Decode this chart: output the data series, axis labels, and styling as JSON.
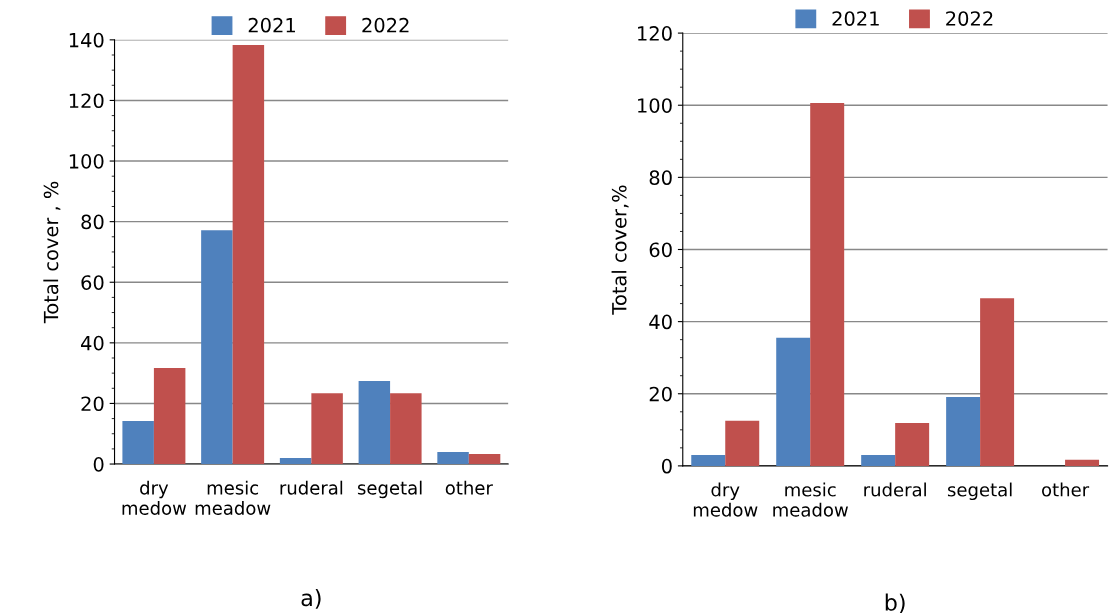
{
  "chart_data": [
    {
      "type": "bar",
      "categories": [
        "dry\nmedow",
        "mesic\nmeadow",
        "ruderal",
        "segetal",
        "other"
      ],
      "series": [
        {
          "name": "2021",
          "color": "#4f81bd",
          "values": [
            14.2,
            77.2,
            2,
            27.4,
            4
          ]
        },
        {
          "name": "2022",
          "color": "#c0504d",
          "values": [
            31.7,
            138.3,
            23.4,
            23.4,
            3.3
          ]
        }
      ],
      "ylabel": "Total cover , %",
      "ylim": [
        0,
        140
      ],
      "yticks": [
        0,
        20,
        40,
        60,
        80,
        100,
        120,
        140
      ],
      "grid": "y",
      "legend": "top",
      "annotations": [
        "a)"
      ]
    },
    {
      "type": "bar",
      "categories": [
        "dry\nmedow",
        "mesic\nmeadow",
        "ruderal",
        "segetal",
        "other"
      ],
      "series": [
        {
          "name": "2021",
          "color": "#4f81bd",
          "values": [
            3.0,
            35.5,
            3.0,
            19.1,
            0
          ]
        },
        {
          "name": "2022",
          "color": "#c0504d",
          "values": [
            12.5,
            100.6,
            11.9,
            46.5,
            1.7
          ]
        }
      ],
      "ylabel": "Total cover,%",
      "ylim": [
        0,
        120
      ],
      "yticks": [
        0,
        20,
        40,
        60,
        80,
        100,
        120
      ],
      "grid": "y",
      "legend": "top",
      "annotations": [
        "b)"
      ]
    }
  ]
}
